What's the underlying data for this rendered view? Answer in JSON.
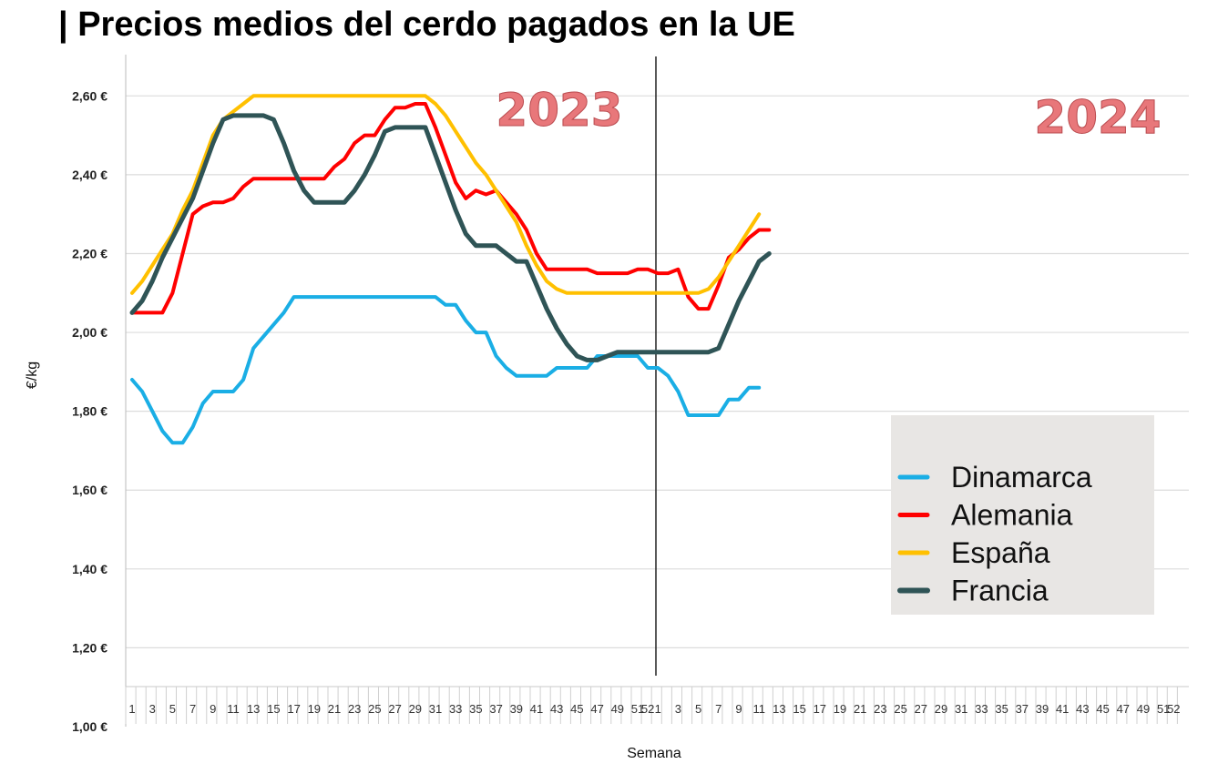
{
  "title": "| Precios medios del cerdo pagados en la UE",
  "chart_data": {
    "type": "line",
    "ylabel": "€/kg",
    "xlabel": "Semana",
    "ylim": [
      1.0,
      2.7
    ],
    "y_ticks": [
      {
        "value": 1.0,
        "label": "1,00 €"
      },
      {
        "value": 1.2,
        "label": "1,20 €"
      },
      {
        "value": 1.4,
        "label": "1,40 €"
      },
      {
        "value": 1.6,
        "label": "1,60 €"
      },
      {
        "value": 1.8,
        "label": "1,80 €"
      },
      {
        "value": 2.0,
        "label": "2,00 €"
      },
      {
        "value": 2.2,
        "label": "2,20 €"
      },
      {
        "value": 2.4,
        "label": "2,40 €"
      },
      {
        "value": 2.6,
        "label": "2,60 €"
      }
    ],
    "years": [
      "2023",
      "2024"
    ],
    "x_tick_labels_2023": [
      "1",
      "3",
      "5",
      "7",
      "9",
      "11",
      "13",
      "15",
      "17",
      "19",
      "21",
      "23",
      "25",
      "27",
      "29",
      "31",
      "33",
      "35",
      "37",
      "39",
      "41",
      "43",
      "45",
      "47",
      "49",
      "51",
      "52"
    ],
    "x_tick_labels_2024": [
      "1",
      "3",
      "5",
      "7",
      "9",
      "11",
      "13",
      "15",
      "17",
      "19",
      "21",
      "23",
      "25",
      "27",
      "29",
      "31",
      "33",
      "35",
      "37",
      "39",
      "41",
      "43",
      "45",
      "47",
      "49",
      "51",
      "52"
    ],
    "legend_position": "bottom-right",
    "grid": true,
    "series": [
      {
        "name": "Dinamarca",
        "color": "#1aaee5",
        "points": [
          [
            1,
            1.88
          ],
          [
            2,
            1.85
          ],
          [
            3,
            1.8
          ],
          [
            4,
            1.75
          ],
          [
            5,
            1.72
          ],
          [
            6,
            1.72
          ],
          [
            7,
            1.76
          ],
          [
            8,
            1.82
          ],
          [
            9,
            1.85
          ],
          [
            10,
            1.85
          ],
          [
            11,
            1.85
          ],
          [
            12,
            1.88
          ],
          [
            13,
            1.96
          ],
          [
            14,
            1.99
          ],
          [
            15,
            2.02
          ],
          [
            16,
            2.05
          ],
          [
            17,
            2.09
          ],
          [
            18,
            2.09
          ],
          [
            19,
            2.09
          ],
          [
            20,
            2.09
          ],
          [
            21,
            2.09
          ],
          [
            22,
            2.09
          ],
          [
            23,
            2.09
          ],
          [
            24,
            2.09
          ],
          [
            25,
            2.09
          ],
          [
            26,
            2.09
          ],
          [
            27,
            2.09
          ],
          [
            28,
            2.09
          ],
          [
            29,
            2.09
          ],
          [
            30,
            2.09
          ],
          [
            31,
            2.09
          ],
          [
            32,
            2.07
          ],
          [
            33,
            2.07
          ],
          [
            34,
            2.03
          ],
          [
            35,
            2.0
          ],
          [
            36,
            2.0
          ],
          [
            37,
            1.94
          ],
          [
            38,
            1.91
          ],
          [
            39,
            1.89
          ],
          [
            40,
            1.89
          ],
          [
            41,
            1.89
          ],
          [
            42,
            1.89
          ],
          [
            43,
            1.91
          ],
          [
            44,
            1.91
          ],
          [
            45,
            1.91
          ],
          [
            46,
            1.91
          ],
          [
            47,
            1.94
          ],
          [
            48,
            1.94
          ],
          [
            49,
            1.94
          ],
          [
            50,
            1.94
          ],
          [
            51,
            1.94
          ],
          [
            52,
            1.91
          ],
          [
            53,
            1.91
          ],
          [
            54,
            1.89
          ],
          [
            55,
            1.85
          ],
          [
            56,
            1.79
          ],
          [
            57,
            1.79
          ],
          [
            58,
            1.79
          ],
          [
            59,
            1.79
          ],
          [
            60,
            1.83
          ],
          [
            61,
            1.83
          ],
          [
            62,
            1.86
          ],
          [
            63,
            1.86
          ]
        ]
      },
      {
        "name": "Alemania",
        "color": "#ff0000",
        "points": [
          [
            1,
            2.05
          ],
          [
            2,
            2.05
          ],
          [
            3,
            2.05
          ],
          [
            4,
            2.05
          ],
          [
            5,
            2.1
          ],
          [
            6,
            2.2
          ],
          [
            7,
            2.3
          ],
          [
            8,
            2.32
          ],
          [
            9,
            2.33
          ],
          [
            10,
            2.33
          ],
          [
            11,
            2.34
          ],
          [
            12,
            2.37
          ],
          [
            13,
            2.39
          ],
          [
            14,
            2.39
          ],
          [
            15,
            2.39
          ],
          [
            16,
            2.39
          ],
          [
            17,
            2.39
          ],
          [
            18,
            2.39
          ],
          [
            19,
            2.39
          ],
          [
            20,
            2.39
          ],
          [
            21,
            2.42
          ],
          [
            22,
            2.44
          ],
          [
            23,
            2.48
          ],
          [
            24,
            2.5
          ],
          [
            25,
            2.5
          ],
          [
            26,
            2.54
          ],
          [
            27,
            2.57
          ],
          [
            28,
            2.57
          ],
          [
            29,
            2.58
          ],
          [
            30,
            2.58
          ],
          [
            31,
            2.52
          ],
          [
            32,
            2.45
          ],
          [
            33,
            2.38
          ],
          [
            34,
            2.34
          ],
          [
            35,
            2.36
          ],
          [
            36,
            2.35
          ],
          [
            37,
            2.36
          ],
          [
            38,
            2.33
          ],
          [
            39,
            2.3
          ],
          [
            40,
            2.26
          ],
          [
            41,
            2.2
          ],
          [
            42,
            2.16
          ],
          [
            43,
            2.16
          ],
          [
            44,
            2.16
          ],
          [
            45,
            2.16
          ],
          [
            46,
            2.16
          ],
          [
            47,
            2.15
          ],
          [
            48,
            2.15
          ],
          [
            49,
            2.15
          ],
          [
            50,
            2.15
          ],
          [
            51,
            2.16
          ],
          [
            52,
            2.16
          ],
          [
            53,
            2.15
          ],
          [
            54,
            2.15
          ],
          [
            55,
            2.16
          ],
          [
            56,
            2.09
          ],
          [
            57,
            2.06
          ],
          [
            58,
            2.06
          ],
          [
            59,
            2.12
          ],
          [
            60,
            2.19
          ],
          [
            61,
            2.21
          ],
          [
            62,
            2.24
          ],
          [
            63,
            2.26
          ],
          [
            64,
            2.26
          ]
        ]
      },
      {
        "name": "España",
        "color": "#ffc000",
        "points": [
          [
            1,
            2.1
          ],
          [
            2,
            2.13
          ],
          [
            3,
            2.17
          ],
          [
            4,
            2.21
          ],
          [
            5,
            2.25
          ],
          [
            6,
            2.31
          ],
          [
            7,
            2.36
          ],
          [
            8,
            2.43
          ],
          [
            9,
            2.5
          ],
          [
            10,
            2.54
          ],
          [
            11,
            2.56
          ],
          [
            12,
            2.58
          ],
          [
            13,
            2.6
          ],
          [
            14,
            2.6
          ],
          [
            15,
            2.6
          ],
          [
            16,
            2.6
          ],
          [
            17,
            2.6
          ],
          [
            18,
            2.6
          ],
          [
            19,
            2.6
          ],
          [
            20,
            2.6
          ],
          [
            21,
            2.6
          ],
          [
            22,
            2.6
          ],
          [
            23,
            2.6
          ],
          [
            24,
            2.6
          ],
          [
            25,
            2.6
          ],
          [
            26,
            2.6
          ],
          [
            27,
            2.6
          ],
          [
            28,
            2.6
          ],
          [
            29,
            2.6
          ],
          [
            30,
            2.6
          ],
          [
            31,
            2.58
          ],
          [
            32,
            2.55
          ],
          [
            33,
            2.51
          ],
          [
            34,
            2.47
          ],
          [
            35,
            2.43
          ],
          [
            36,
            2.4
          ],
          [
            37,
            2.36
          ],
          [
            38,
            2.32
          ],
          [
            39,
            2.28
          ],
          [
            40,
            2.22
          ],
          [
            41,
            2.17
          ],
          [
            42,
            2.13
          ],
          [
            43,
            2.11
          ],
          [
            44,
            2.1
          ],
          [
            45,
            2.1
          ],
          [
            46,
            2.1
          ],
          [
            47,
            2.1
          ],
          [
            48,
            2.1
          ],
          [
            49,
            2.1
          ],
          [
            50,
            2.1
          ],
          [
            51,
            2.1
          ],
          [
            52,
            2.1
          ],
          [
            53,
            2.1
          ],
          [
            54,
            2.1
          ],
          [
            55,
            2.1
          ],
          [
            56,
            2.1
          ],
          [
            57,
            2.1
          ],
          [
            58,
            2.11
          ],
          [
            59,
            2.14
          ],
          [
            60,
            2.18
          ],
          [
            61,
            2.22
          ],
          [
            62,
            2.26
          ],
          [
            63,
            2.3
          ]
        ]
      },
      {
        "name": "Francia",
        "color": "#2f5456",
        "points": [
          [
            1,
            2.05
          ],
          [
            2,
            2.08
          ],
          [
            3,
            2.13
          ],
          [
            4,
            2.19
          ],
          [
            5,
            2.24
          ],
          [
            6,
            2.29
          ],
          [
            7,
            2.34
          ],
          [
            8,
            2.41
          ],
          [
            9,
            2.48
          ],
          [
            10,
            2.54
          ],
          [
            11,
            2.55
          ],
          [
            12,
            2.55
          ],
          [
            13,
            2.55
          ],
          [
            14,
            2.55
          ],
          [
            15,
            2.54
          ],
          [
            16,
            2.48
          ],
          [
            17,
            2.41
          ],
          [
            18,
            2.36
          ],
          [
            19,
            2.33
          ],
          [
            20,
            2.33
          ],
          [
            21,
            2.33
          ],
          [
            22,
            2.33
          ],
          [
            23,
            2.36
          ],
          [
            24,
            2.4
          ],
          [
            25,
            2.45
          ],
          [
            26,
            2.51
          ],
          [
            27,
            2.52
          ],
          [
            28,
            2.52
          ],
          [
            29,
            2.52
          ],
          [
            30,
            2.52
          ],
          [
            31,
            2.45
          ],
          [
            32,
            2.38
          ],
          [
            33,
            2.31
          ],
          [
            34,
            2.25
          ],
          [
            35,
            2.22
          ],
          [
            36,
            2.22
          ],
          [
            37,
            2.22
          ],
          [
            38,
            2.2
          ],
          [
            39,
            2.18
          ],
          [
            40,
            2.18
          ],
          [
            41,
            2.12
          ],
          [
            42,
            2.06
          ],
          [
            43,
            2.01
          ],
          [
            44,
            1.97
          ],
          [
            45,
            1.94
          ],
          [
            46,
            1.93
          ],
          [
            47,
            1.93
          ],
          [
            48,
            1.94
          ],
          [
            49,
            1.95
          ],
          [
            50,
            1.95
          ],
          [
            51,
            1.95
          ],
          [
            52,
            1.95
          ],
          [
            53,
            1.95
          ],
          [
            54,
            1.95
          ],
          [
            55,
            1.95
          ],
          [
            56,
            1.95
          ],
          [
            57,
            1.95
          ],
          [
            58,
            1.95
          ],
          [
            59,
            1.96
          ],
          [
            60,
            2.02
          ],
          [
            61,
            2.08
          ],
          [
            62,
            2.13
          ],
          [
            63,
            2.18
          ],
          [
            64,
            2.2
          ]
        ]
      }
    ]
  }
}
